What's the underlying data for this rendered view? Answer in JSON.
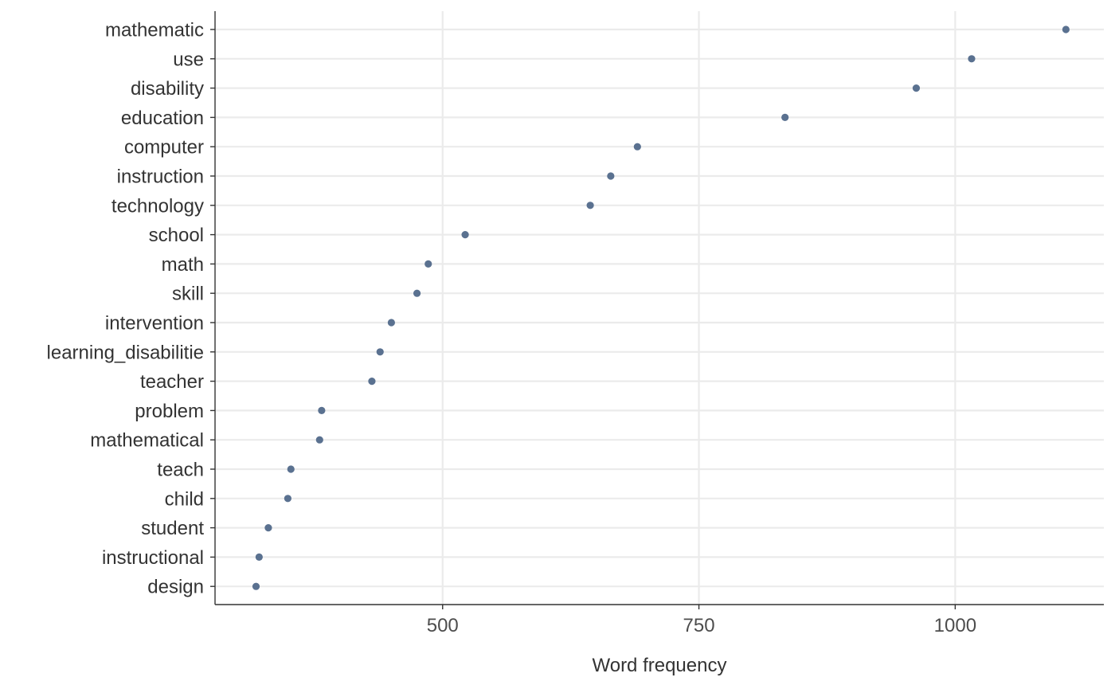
{
  "chart_data": {
    "type": "scatter",
    "title": "",
    "xlabel": "Word frequency",
    "ylabel": "",
    "xlim": [
      278,
      1145
    ],
    "x_ticks": [
      500,
      750,
      1000
    ],
    "x_tick_labels": [
      "500",
      "750",
      "1000"
    ],
    "grid": true,
    "legend": "none",
    "point_color": "#5a7190",
    "categories": [
      "mathematic",
      "use",
      "disability",
      "education",
      "computer",
      "instruction",
      "technology",
      "school",
      "math",
      "skill",
      "intervention",
      "learning_disabilitie",
      "teacher",
      "problem",
      "mathematical",
      "teach",
      "child",
      "student",
      "instructional",
      "design"
    ],
    "values": [
      1108,
      1016,
      962,
      834,
      690,
      664,
      644,
      522,
      486,
      475,
      450,
      439,
      431,
      382,
      380,
      352,
      349,
      330,
      321,
      318
    ]
  }
}
